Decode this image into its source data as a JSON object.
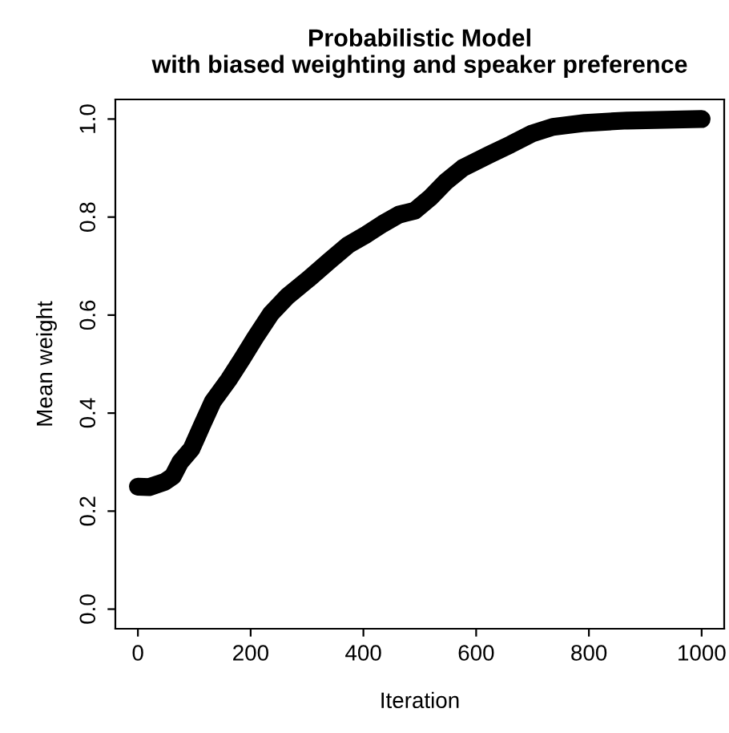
{
  "chart_data": {
    "type": "line",
    "title": "Probabilistic Model\nwith biased weighting and speaker preference",
    "xlabel": "Iteration",
    "ylabel": "Mean weight",
    "series": [
      {
        "color": "#000000",
        "x": [
          0,
          20,
          48,
          62,
          75,
          95,
          114,
          133,
          161,
          185,
          208,
          236,
          265,
          302,
          340,
          373,
          406,
          434,
          463,
          491,
          519,
          547,
          576,
          623,
          661,
          698,
          736,
          793,
          868,
          1000
        ],
        "values": [
          0.25,
          0.249,
          0.26,
          0.271,
          0.3,
          0.327,
          0.376,
          0.424,
          0.468,
          0.511,
          0.554,
          0.603,
          0.638,
          0.673,
          0.711,
          0.743,
          0.765,
          0.786,
          0.805,
          0.813,
          0.84,
          0.873,
          0.9,
          0.927,
          0.948,
          0.97,
          0.984,
          0.992,
          0.997,
          1.0
        ]
      }
    ],
    "xlim": [
      -40,
      1040
    ],
    "ylim": [
      -0.04,
      1.04
    ],
    "xticks": [
      0,
      200,
      400,
      600,
      800,
      1000
    ],
    "yticks": [
      {
        "value": 0,
        "label": "0.0"
      },
      {
        "value": 0.2,
        "label": "0.2"
      },
      {
        "value": 0.4,
        "label": "0.4"
      },
      {
        "value": 0.6,
        "label": "0.6"
      },
      {
        "value": 0.8,
        "label": "0.8"
      },
      {
        "value": 1.0,
        "label": "1.0"
      }
    ],
    "grid": false,
    "line_style": "solid"
  }
}
